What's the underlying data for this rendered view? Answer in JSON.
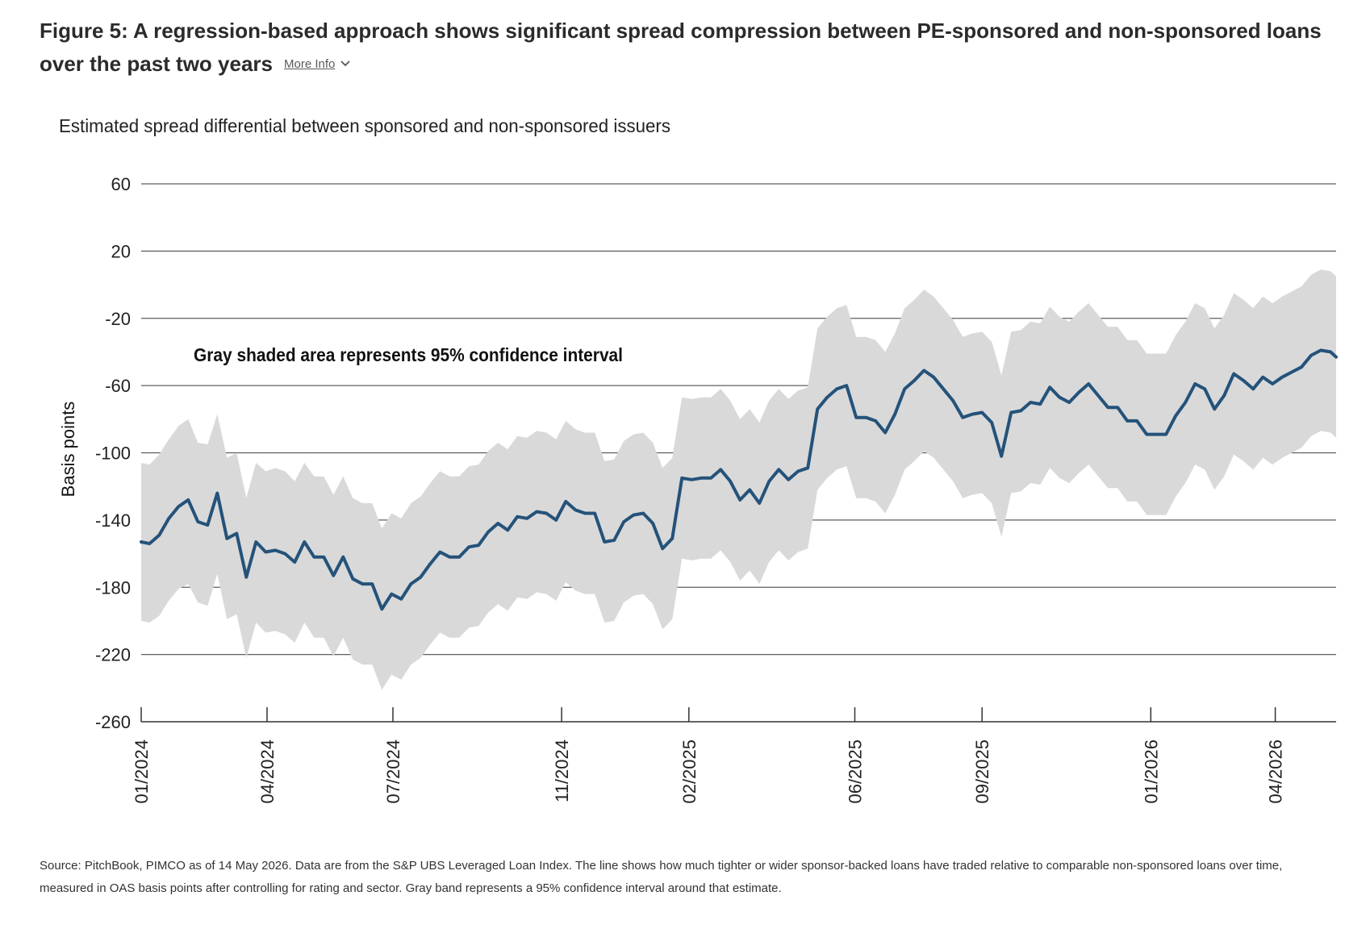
{
  "figure": {
    "title": "Figure 5: A regression-based approach shows significant spread compression between PE-sponsored and non-sponsored loans over the past two years",
    "more_info_label": "More Info",
    "source_note": "Source: PitchBook, PIMCO as of 14 May 2026. Data are from the S&P UBS Leveraged Loan Index. The line shows how much tighter or wider sponsor-backed loans have traded relative to comparable non-sponsored loans over time, measured in OAS basis points after controlling for rating and sector. Gray band represents a 95% confidence interval around that estimate."
  },
  "chart_data": {
    "type": "line",
    "title": "Estimated spread differential between sponsored and non-sponsored issuers",
    "ylabel": "Basis points",
    "xlabel": "",
    "annotation": "Gray shaded area represents 95% confidence interval",
    "ylim": [
      -260,
      60
    ],
    "yticks": [
      60,
      20,
      -20,
      -60,
      -100,
      -140,
      -180,
      -220,
      -260
    ],
    "xlim": [
      "2024-01-01",
      "2026-05-14"
    ],
    "xticks": [
      {
        "date": "2024-01-01",
        "label": "01/2024"
      },
      {
        "date": "2024-04-01",
        "label": "04/2024"
      },
      {
        "date": "2024-07-01",
        "label": "07/2024"
      },
      {
        "date": "2024-10-31",
        "label": "11/2024"
      },
      {
        "date": "2025-01-31",
        "label": "02/2025"
      },
      {
        "date": "2025-05-31",
        "label": "06/2025"
      },
      {
        "date": "2025-08-31",
        "label": "09/2025"
      },
      {
        "date": "2025-12-31",
        "label": "01/2026"
      },
      {
        "date": "2026-03-31",
        "label": "04/2026"
      }
    ],
    "grid": true,
    "colors": {
      "line": "#24527a",
      "band": "#d9d9d9",
      "grid": "#5e5e5e",
      "axis": "#333333"
    },
    "series": [
      {
        "role": "estimate",
        "x": [
          "2024-01-01",
          "2024-01-07",
          "2024-01-14",
          "2024-01-21",
          "2024-01-28",
          "2024-02-04",
          "2024-02-11",
          "2024-02-18",
          "2024-02-25",
          "2024-03-03",
          "2024-03-10",
          "2024-03-17",
          "2024-03-24",
          "2024-03-31",
          "2024-04-07",
          "2024-04-14",
          "2024-04-21",
          "2024-04-28",
          "2024-05-05",
          "2024-05-12",
          "2024-05-19",
          "2024-05-26",
          "2024-06-02",
          "2024-06-09",
          "2024-06-16",
          "2024-06-23",
          "2024-06-30",
          "2024-07-07",
          "2024-07-14",
          "2024-07-21",
          "2024-07-28",
          "2024-08-04",
          "2024-08-11",
          "2024-08-18",
          "2024-08-25",
          "2024-09-01",
          "2024-09-08",
          "2024-09-15",
          "2024-09-22",
          "2024-09-29",
          "2024-10-06",
          "2024-10-13",
          "2024-10-20",
          "2024-10-27",
          "2024-11-03",
          "2024-11-10",
          "2024-11-17",
          "2024-11-24",
          "2024-12-01",
          "2024-12-08",
          "2024-12-15",
          "2024-12-22",
          "2024-12-29",
          "2025-01-05",
          "2025-01-12",
          "2025-01-19",
          "2025-01-26",
          "2025-02-02",
          "2025-02-09",
          "2025-02-16",
          "2025-02-23",
          "2025-03-02",
          "2025-03-09",
          "2025-03-16",
          "2025-03-23",
          "2025-03-30",
          "2025-04-06",
          "2025-04-13",
          "2025-04-20",
          "2025-04-27",
          "2025-05-04",
          "2025-05-11",
          "2025-05-18",
          "2025-05-25",
          "2025-06-01",
          "2025-06-08",
          "2025-06-15",
          "2025-06-22",
          "2025-06-29",
          "2025-07-06",
          "2025-07-13",
          "2025-07-20",
          "2025-07-27",
          "2025-08-03",
          "2025-08-10",
          "2025-08-17",
          "2025-08-24",
          "2025-08-31",
          "2025-09-07",
          "2025-09-14",
          "2025-09-21",
          "2025-09-28",
          "2025-10-05",
          "2025-10-12",
          "2025-10-19",
          "2025-10-26",
          "2025-11-02",
          "2025-11-09",
          "2025-11-16",
          "2025-11-23",
          "2025-11-30",
          "2025-12-07",
          "2025-12-14",
          "2025-12-21",
          "2025-12-28",
          "2026-01-04",
          "2026-01-11",
          "2026-01-18",
          "2026-01-25",
          "2026-02-01",
          "2026-02-08",
          "2026-02-15",
          "2026-02-22",
          "2026-03-01",
          "2026-03-08",
          "2026-03-15",
          "2026-03-22",
          "2026-03-29",
          "2026-04-05",
          "2026-04-12",
          "2026-04-19",
          "2026-04-26",
          "2026-05-03",
          "2026-05-10",
          "2026-05-14"
        ],
        "y": [
          -153,
          -154,
          -149,
          -139,
          -132,
          -128,
          -141,
          -143,
          -124,
          -151,
          -148,
          -174,
          -153,
          -159,
          -158,
          -160,
          -165,
          -153,
          -162,
          -162,
          -173,
          -162,
          -175,
          -178,
          -178,
          -193,
          -184,
          -187,
          -178,
          -174,
          -166,
          -159,
          -162,
          -162,
          -156,
          -155,
          -147,
          -142,
          -146,
          -138,
          -139,
          -135,
          -136,
          -140,
          -129,
          -134,
          -136,
          -136,
          -153,
          -152,
          -141,
          -137,
          -136,
          -142,
          -157,
          -151,
          -115,
          -116,
          -115,
          -115,
          -110,
          -117,
          -128,
          -122,
          -130,
          -117,
          -110,
          -116,
          -111,
          -109,
          -74,
          -67,
          -62,
          -60,
          -79,
          -79,
          -81,
          -88,
          -77,
          -62,
          -57,
          -51,
          -55,
          -62,
          -69,
          -79,
          -77,
          -76,
          -82,
          -102,
          -76,
          -75,
          -70,
          -71,
          -61,
          -67,
          -70,
          -64,
          -59,
          -66,
          -73,
          -73,
          -81,
          -81,
          -89,
          -89,
          -89,
          -78,
          -70,
          -59,
          -62,
          -74,
          -66,
          -53,
          -57,
          -62,
          -55,
          -59,
          -55,
          -52,
          -49,
          -42,
          -39,
          -40,
          -43
        ],
        "lower": [
          -200,
          -201,
          -197,
          -188,
          -181,
          -178,
          -189,
          -191,
          -172,
          -199,
          -196,
          -222,
          -201,
          -207,
          -206,
          -208,
          -213,
          -201,
          -210,
          -210,
          -221,
          -210,
          -223,
          -226,
          -226,
          -241,
          -232,
          -235,
          -226,
          -222,
          -214,
          -207,
          -210,
          -210,
          -204,
          -203,
          -195,
          -190,
          -194,
          -186,
          -187,
          -183,
          -184,
          -188,
          -177,
          -182,
          -184,
          -184,
          -201,
          -200,
          -189,
          -185,
          -184,
          -190,
          -205,
          -199,
          -163,
          -164,
          -163,
          -163,
          -158,
          -165,
          -176,
          -170,
          -178,
          -165,
          -158,
          -164,
          -159,
          -157,
          -122,
          -115,
          -110,
          -108,
          -127,
          -127,
          -129,
          -136,
          -125,
          -110,
          -105,
          -99,
          -103,
          -110,
          -117,
          -127,
          -125,
          -124,
          -130,
          -150,
          -124,
          -123,
          -118,
          -119,
          -109,
          -115,
          -118,
          -112,
          -107,
          -114,
          -121,
          -121,
          -129,
          -129,
          -137,
          -137,
          -137,
          -126,
          -118,
          -107,
          -110,
          -122,
          -114,
          -101,
          -105,
          -110,
          -103,
          -107,
          -103,
          -100,
          -97,
          -90,
          -87,
          -88,
          -91
        ],
        "upper": [
          -106,
          -107,
          -101,
          -92,
          -84,
          -80,
          -94,
          -95,
          -77,
          -103,
          -100,
          -127,
          -106,
          -111,
          -109,
          -111,
          -117,
          -106,
          -114,
          -114,
          -125,
          -114,
          -127,
          -130,
          -130,
          -145,
          -136,
          -139,
          -130,
          -126,
          -118,
          -111,
          -114,
          -114,
          -108,
          -107,
          -99,
          -94,
          -98,
          -90,
          -91,
          -87,
          -88,
          -92,
          -81,
          -86,
          -88,
          -88,
          -105,
          -104,
          -93,
          -89,
          -88,
          -94,
          -109,
          -103,
          -67,
          -68,
          -67,
          -67,
          -62,
          -69,
          -80,
          -74,
          -82,
          -69,
          -62,
          -68,
          -63,
          -61,
          -26,
          -19,
          -14,
          -12,
          -31,
          -31,
          -33,
          -40,
          -29,
          -14,
          -9,
          -3,
          -7,
          -14,
          -21,
          -31,
          -29,
          -28,
          -34,
          -54,
          -28,
          -27,
          -22,
          -23,
          -13,
          -19,
          -22,
          -16,
          -11,
          -18,
          -25,
          -25,
          -33,
          -33,
          -41,
          -41,
          -41,
          -30,
          -22,
          -11,
          -14,
          -26,
          -18,
          -5,
          -9,
          -14,
          -7,
          -11,
          -7,
          -4,
          -1,
          6,
          9,
          8,
          5
        ]
      }
    ]
  }
}
